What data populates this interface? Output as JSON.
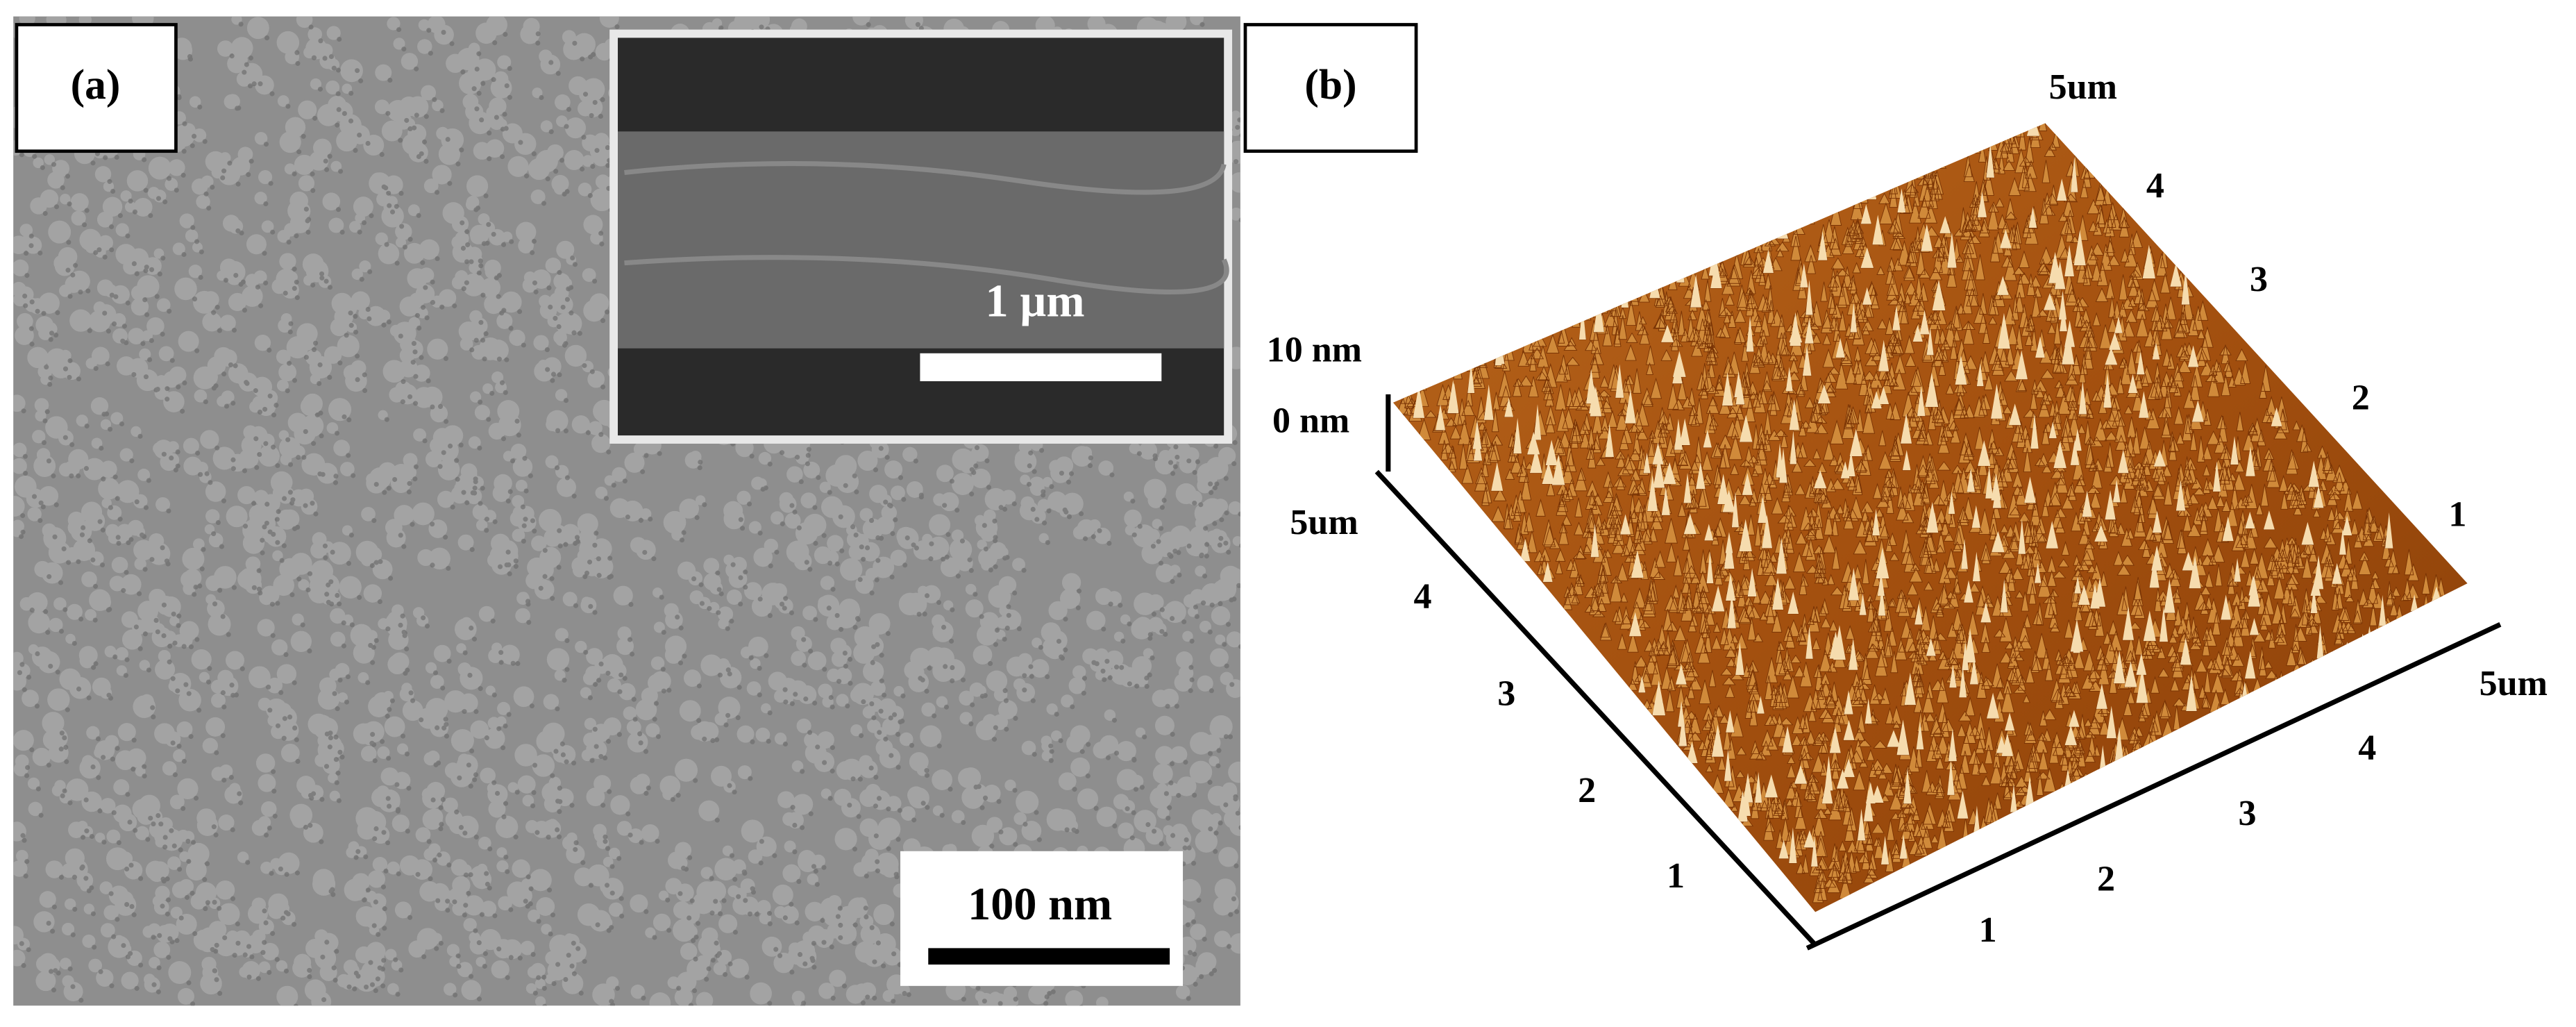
{
  "panel_a": {
    "label": "(a)",
    "inset_scale": "1 µm",
    "scale": "100 nm"
  },
  "panel_b": {
    "label": "(b)",
    "z_labels": [
      "10 nm",
      "0 nm"
    ],
    "left_axis_labels": [
      "5um",
      "4",
      "3",
      "2",
      "1"
    ],
    "bottom_axis_labels": [
      "1",
      "2",
      "3",
      "4",
      "5um"
    ],
    "right_edge_labels": [
      "1",
      "2",
      "3",
      "4",
      "5um"
    ]
  }
}
